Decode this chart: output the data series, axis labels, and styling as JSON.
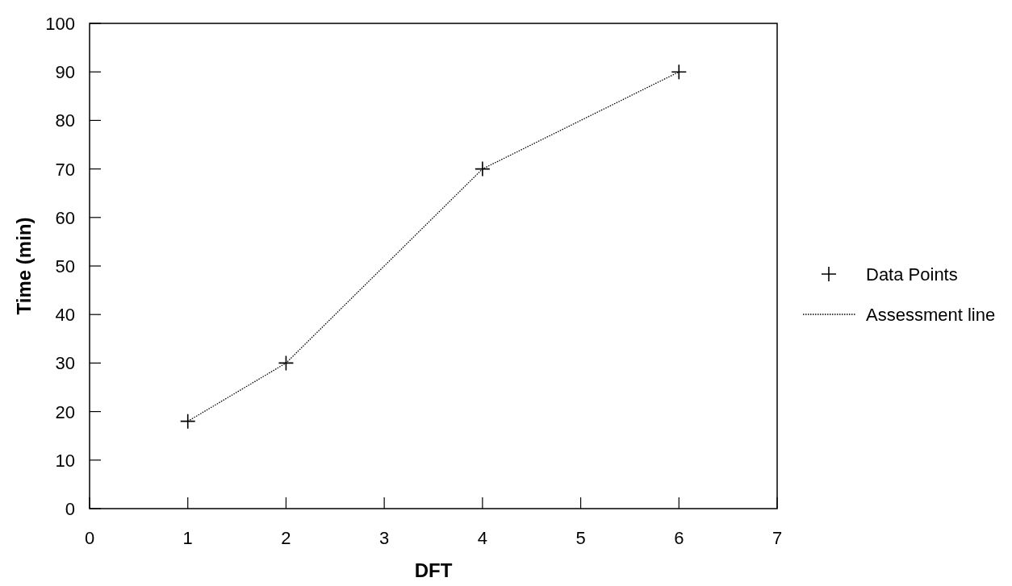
{
  "chart_data": {
    "type": "line",
    "xlabel": "DFT",
    "ylabel": "Time (min)",
    "x": [
      1,
      2,
      4,
      6
    ],
    "series": [
      {
        "name": "Data Points",
        "type": "scatter",
        "color": "#000000",
        "marker": "cross",
        "values": [
          18,
          30,
          70,
          90
        ]
      },
      {
        "name": "Assessment line",
        "color": "#000000",
        "line_style": "dotted",
        "marker": "none",
        "values": [
          18,
          30,
          70,
          90
        ]
      }
    ],
    "xlim": [
      0,
      7
    ],
    "xticks": [
      0,
      1,
      2,
      3,
      4,
      5,
      6,
      7
    ],
    "ylim": [
      0,
      100
    ],
    "yticks": [
      0,
      10,
      20,
      30,
      40,
      50,
      60,
      70,
      80,
      90,
      100
    ],
    "grid": false,
    "legend": "right"
  }
}
